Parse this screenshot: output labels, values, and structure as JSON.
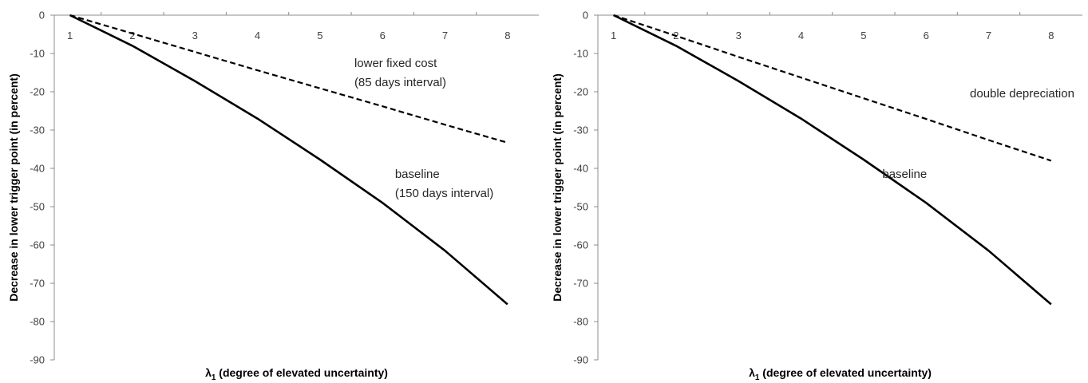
{
  "chart_data": [
    {
      "type": "line",
      "title": "",
      "xlabel": "λ1 (degree of elevated uncertainty)",
      "ylabel": "Decrease in lower trigger point (in percent)",
      "xlim": [
        0.75,
        8.5
      ],
      "ylim": [
        -90,
        0
      ],
      "x_ticks": [
        "1",
        "2",
        "3",
        "4",
        "5",
        "6",
        "7",
        "8"
      ],
      "y_ticks": [
        "0",
        "-10",
        "-20",
        "-30",
        "-40",
        "-50",
        "-60",
        "-70",
        "-80",
        "-90"
      ],
      "grid": false,
      "legend": "none",
      "series": [
        {
          "name": "lower fixed cost (85 days interval)",
          "style": "dashed",
          "color": "#000000",
          "x": [
            1,
            2,
            3,
            4,
            5,
            6,
            7,
            8
          ],
          "y": [
            0,
            -4.8,
            -9.6,
            -14.4,
            -19.1,
            -23.8,
            -28.6,
            -33.3
          ]
        },
        {
          "name": "baseline (150 days interval)",
          "style": "solid",
          "color": "#000000",
          "x": [
            1,
            2,
            3,
            4,
            5,
            6,
            7,
            8
          ],
          "y": [
            0,
            -8.0,
            -17.2,
            -27.0,
            -37.7,
            -49.0,
            -61.5,
            -75.5
          ]
        }
      ],
      "annotations": [
        {
          "lines": [
            "lower fixed cost",
            "(85 days interval)"
          ],
          "x": 5.55,
          "y": -13.5
        },
        {
          "lines": [
            "baseline",
            "(150 days interval)"
          ],
          "x": 6.2,
          "y": -42.5
        }
      ]
    },
    {
      "type": "line",
      "title": "",
      "xlabel": "λ1 (degree of elevated uncertainty)",
      "ylabel": "Decrease in lower trigger point (in percent)",
      "xlim": [
        0.75,
        8.5
      ],
      "ylim": [
        -90,
        0
      ],
      "x_ticks": [
        "1",
        "2",
        "3",
        "4",
        "5",
        "6",
        "7",
        "8"
      ],
      "y_ticks": [
        "0",
        "-10",
        "-20",
        "-30",
        "-40",
        "-50",
        "-60",
        "-70",
        "-80",
        "-90"
      ],
      "grid": false,
      "legend": "none",
      "series": [
        {
          "name": "double depreciation",
          "style": "dashed",
          "color": "#000000",
          "x": [
            1,
            2,
            3,
            4,
            5,
            6,
            7,
            8
          ],
          "y": [
            0,
            -5.4,
            -10.9,
            -16.3,
            -21.7,
            -27.1,
            -32.6,
            -38.0
          ]
        },
        {
          "name": "baseline",
          "style": "solid",
          "color": "#000000",
          "x": [
            1,
            2,
            3,
            4,
            5,
            6,
            7,
            8
          ],
          "y": [
            0,
            -8.0,
            -17.2,
            -27.0,
            -37.7,
            -49.0,
            -61.5,
            -75.5
          ]
        }
      ],
      "annotations": [
        {
          "lines": [
            "double  depreciation"
          ],
          "x": 6.7,
          "y": -21.5
        },
        {
          "lines": [
            "baseline"
          ],
          "x": 5.3,
          "y": -42.5
        }
      ]
    }
  ]
}
